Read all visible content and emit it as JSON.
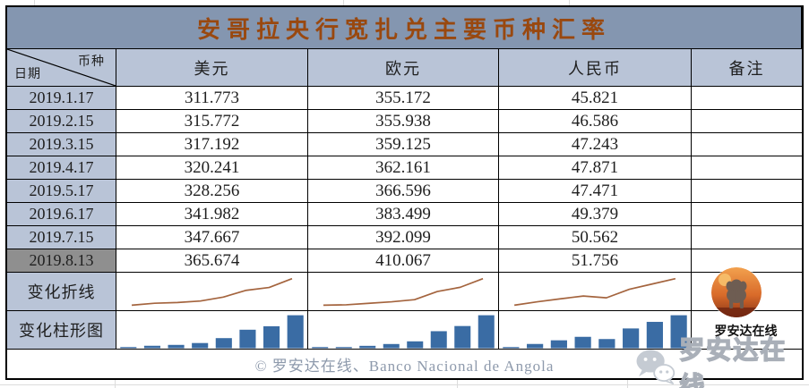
{
  "title": "安哥拉央行宽扎兑主要币种汇率",
  "header": {
    "corner_top": "币种",
    "corner_bottom": "日期",
    "columns": [
      "美元",
      "欧元",
      "人民币",
      "备注"
    ]
  },
  "rows": [
    {
      "date": "2019.1.17",
      "usd": "311.773",
      "eur": "355.172",
      "rmb": "45.821",
      "note": ""
    },
    {
      "date": "2019.2.15",
      "usd": "315.772",
      "eur": "355.938",
      "rmb": "46.586",
      "note": ""
    },
    {
      "date": "2019.3.15",
      "usd": "317.192",
      "eur": "359.125",
      "rmb": "47.243",
      "note": ""
    },
    {
      "date": "2019.4.17",
      "usd": "320.241",
      "eur": "362.161",
      "rmb": "47.871",
      "note": ""
    },
    {
      "date": "2019.5.17",
      "usd": "328.256",
      "eur": "366.596",
      "rmb": "47.471",
      "note": ""
    },
    {
      "date": "2019.6.17",
      "usd": "341.982",
      "eur": "383.499",
      "rmb": "49.379",
      "note": ""
    },
    {
      "date": "2019.7.15",
      "usd": "347.667",
      "eur": "392.099",
      "rmb": "50.562",
      "note": ""
    },
    {
      "date": "2019.8.13",
      "usd": "365.674",
      "eur": "410.067",
      "rmb": "51.756",
      "note": ""
    }
  ],
  "chart_rows": {
    "line_label": "变化折线",
    "bar_label": "变化柱形图"
  },
  "footer": {
    "text": "© 罗安达在线、Banco Nacional de Angola"
  },
  "branding": {
    "logo_label": "罗安达在线",
    "watermark_text": "罗安达在线",
    "logo_icon": "elephant-photo-logo",
    "watermark_icon": "wechat-icon"
  },
  "colors": {
    "title_bg": "#8496B0",
    "header_bg": "#B9C4D7",
    "highlight_bg": "#8F8F8F",
    "border": "#000000",
    "title_text": "#99480F",
    "text": "#1F1F1F",
    "footer_text": "#8E9AAC",
    "line_color": "#A4643E",
    "bar_color": "#3A6CA4"
  },
  "chart_data": [
    {
      "type": "table",
      "title": "安哥拉央行宽扎兑主要币种汇率",
      "columns": [
        "日期",
        "美元",
        "欧元",
        "人民币",
        "备注"
      ],
      "rows": [
        [
          "2019.1.17",
          311.773,
          355.172,
          45.821,
          ""
        ],
        [
          "2019.2.15",
          315.772,
          355.938,
          46.586,
          ""
        ],
        [
          "2019.3.15",
          317.192,
          359.125,
          47.243,
          ""
        ],
        [
          "2019.4.17",
          320.241,
          362.161,
          47.871,
          ""
        ],
        [
          "2019.5.17",
          328.256,
          366.596,
          47.471,
          ""
        ],
        [
          "2019.6.17",
          341.982,
          383.499,
          49.379,
          ""
        ],
        [
          "2019.7.15",
          347.667,
          392.099,
          50.562,
          ""
        ],
        [
          "2019.8.13",
          365.674,
          410.067,
          51.756,
          ""
        ]
      ]
    },
    {
      "type": "line",
      "title": "变化折线",
      "categories": [
        "2019.1.17",
        "2019.2.15",
        "2019.3.15",
        "2019.4.17",
        "2019.5.17",
        "2019.6.17",
        "2019.7.15",
        "2019.8.13"
      ],
      "series": [
        {
          "name": "美元",
          "values": [
            311.773,
            315.772,
            317.192,
            320.241,
            328.256,
            341.982,
            347.667,
            365.674
          ]
        },
        {
          "name": "欧元",
          "values": [
            355.172,
            355.938,
            359.125,
            362.161,
            366.596,
            383.499,
            392.099,
            410.067
          ]
        },
        {
          "name": "人民币",
          "values": [
            45.821,
            46.586,
            47.243,
            47.871,
            47.471,
            49.379,
            50.562,
            51.756
          ]
        }
      ],
      "layout": "one sparkline per currency cell, y-range scaled per series min..max, no axes, no grid"
    },
    {
      "type": "bar",
      "title": "变化柱形图",
      "categories": [
        "2019.1.17",
        "2019.2.15",
        "2019.3.15",
        "2019.4.17",
        "2019.5.17",
        "2019.6.17",
        "2019.7.15",
        "2019.8.13"
      ],
      "series": [
        {
          "name": "美元",
          "values": [
            311.773,
            315.772,
            317.192,
            320.241,
            328.256,
            341.982,
            347.667,
            365.674
          ]
        },
        {
          "name": "欧元",
          "values": [
            355.172,
            355.938,
            359.125,
            362.161,
            366.596,
            383.499,
            392.099,
            410.067
          ]
        },
        {
          "name": "人民币",
          "values": [
            45.821,
            46.586,
            47.243,
            47.871,
            47.471,
            49.379,
            50.562,
            51.756
          ]
        }
      ],
      "layout": "one column-sparkline per currency cell, bars scaled per series min..max (min is a sliver), no axes, no grid"
    }
  ]
}
